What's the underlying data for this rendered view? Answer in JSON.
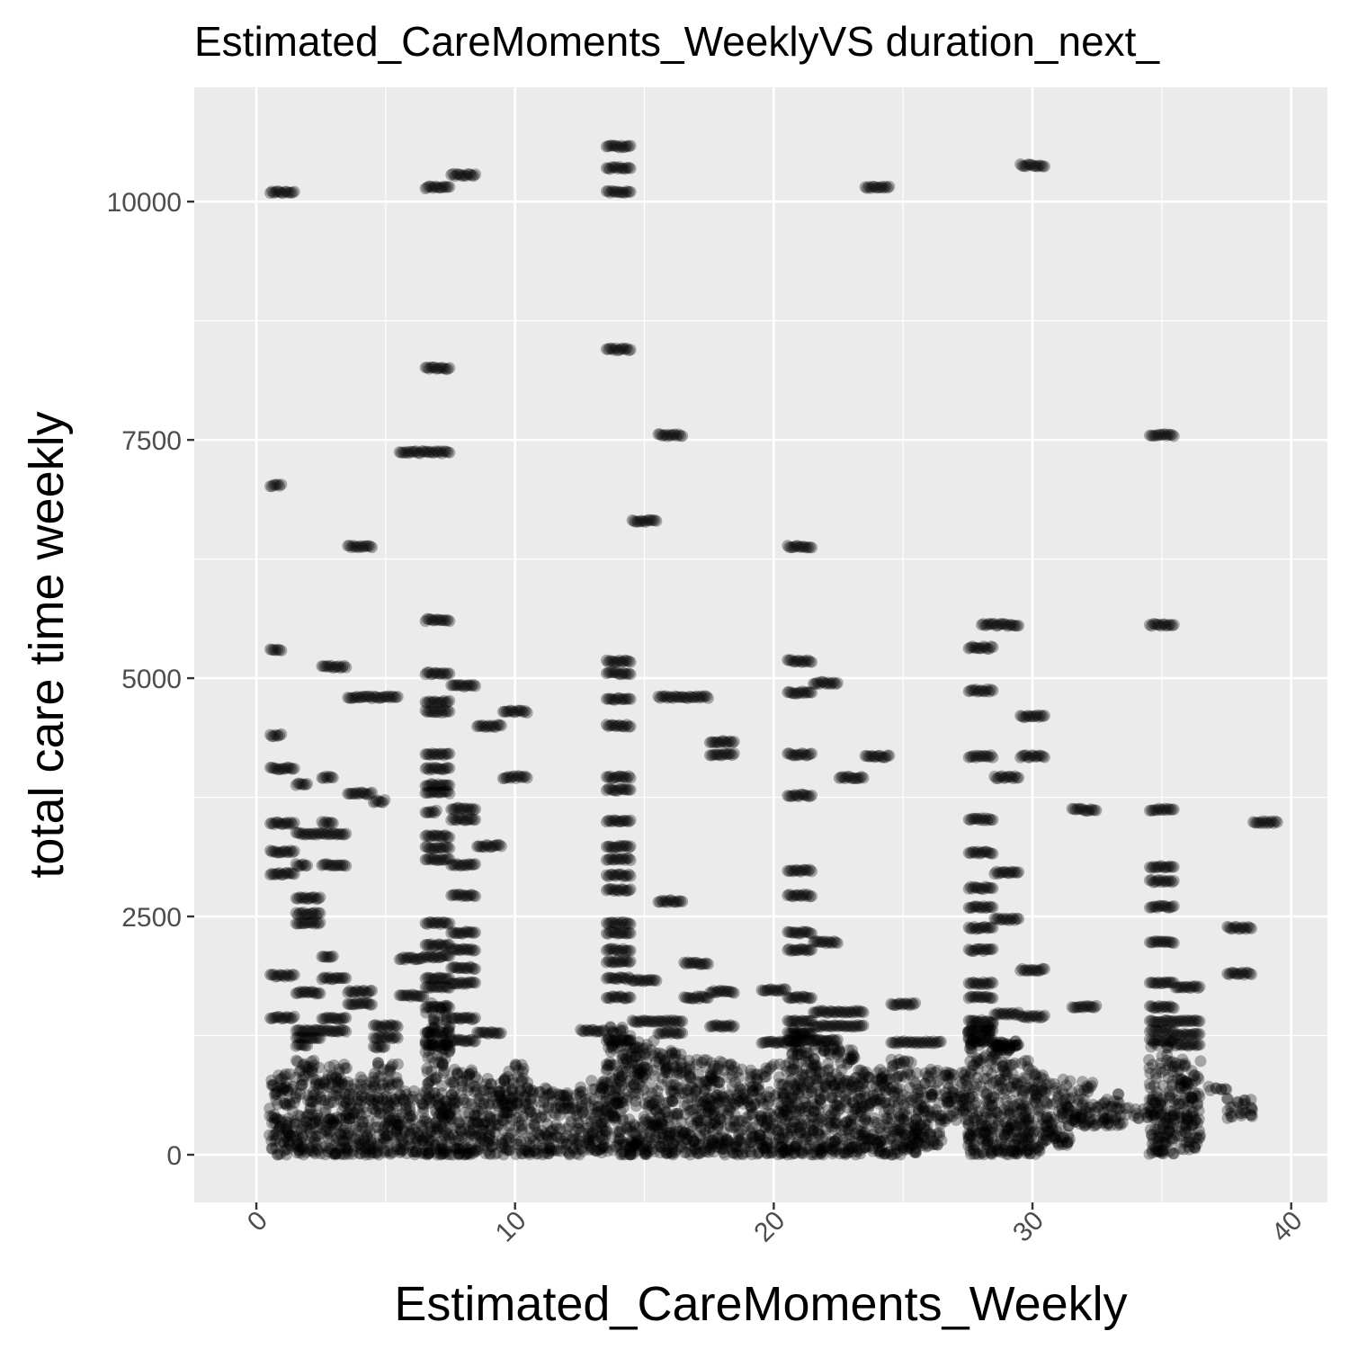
{
  "chart_data": {
    "type": "scatter",
    "title": "Estimated_CareMoments_WeeklyVS duration_next_",
    "xlabel": "Estimated_CareMoments_Weekly",
    "ylabel": "total care time weekly",
    "xlim": [
      -2.4,
      41.4
    ],
    "ylim": [
      -500,
      11200
    ],
    "x_ticks": [
      0,
      10,
      20,
      30,
      40
    ],
    "y_ticks": [
      0,
      2500,
      5000,
      7500,
      10000
    ],
    "grid": true,
    "legend": "none",
    "colors": {
      "panel": "#ebebeb",
      "grid": "#ffffff",
      "point": "#000000"
    },
    "point_alpha": 0.3,
    "bands": [
      [
        0.5,
        1.5,
        10100
      ],
      [
        6.5,
        7.5,
        10150
      ],
      [
        7.5,
        8.5,
        10280
      ],
      [
        13.5,
        14.5,
        10580
      ],
      [
        13.5,
        14.5,
        10350
      ],
      [
        13.5,
        14.5,
        10100
      ],
      [
        23.5,
        24.5,
        10150
      ],
      [
        29.5,
        30.5,
        10380
      ],
      [
        13.5,
        14.5,
        8450
      ],
      [
        6.5,
        7.5,
        8250
      ],
      [
        15.5,
        16.5,
        7550
      ],
      [
        34.5,
        35.5,
        7550
      ],
      [
        5.5,
        7.5,
        7370
      ],
      [
        0.5,
        1.0,
        7020
      ],
      [
        14.5,
        15.5,
        6650
      ],
      [
        3.5,
        4.5,
        6380
      ],
      [
        20.5,
        21.5,
        6380
      ],
      [
        6.5,
        7.5,
        5610
      ],
      [
        28.0,
        29.5,
        5560
      ],
      [
        34.5,
        35.5,
        5560
      ],
      [
        27.5,
        28.5,
        5320
      ],
      [
        0.5,
        1.0,
        5300
      ],
      [
        13.5,
        14.5,
        5180
      ],
      [
        20.5,
        21.5,
        5180
      ],
      [
        2.5,
        3.5,
        5120
      ],
      [
        6.5,
        7.5,
        5050
      ],
      [
        13.5,
        14.5,
        5050
      ],
      [
        21.5,
        22.5,
        4950
      ],
      [
        7.5,
        8.5,
        4920
      ],
      [
        27.5,
        28.5,
        4870
      ],
      [
        20.5,
        21.5,
        4850
      ],
      [
        3.5,
        5.5,
        4800
      ],
      [
        15.5,
        17.5,
        4800
      ],
      [
        6.5,
        7.5,
        4750
      ],
      [
        13.5,
        14.5,
        4780
      ],
      [
        6.5,
        7.5,
        4650
      ],
      [
        9.5,
        10.5,
        4650
      ],
      [
        29.5,
        30.5,
        4600
      ],
      [
        8.5,
        9.5,
        4500
      ],
      [
        13.5,
        14.5,
        4500
      ],
      [
        0.5,
        1.0,
        4400
      ],
      [
        17.5,
        18.5,
        4330
      ],
      [
        6.5,
        7.5,
        4200
      ],
      [
        17.5,
        18.5,
        4200
      ],
      [
        20.5,
        21.5,
        4200
      ],
      [
        23.5,
        24.5,
        4180
      ],
      [
        27.5,
        28.5,
        4180
      ],
      [
        29.5,
        30.5,
        4180
      ],
      [
        6.5,
        7.5,
        4050
      ],
      [
        0.5,
        1.5,
        4050
      ],
      [
        9.5,
        10.5,
        3960
      ],
      [
        13.5,
        14.5,
        3960
      ],
      [
        22.5,
        23.5,
        3960
      ],
      [
        28.5,
        29.5,
        3960
      ],
      [
        2.5,
        3.0,
        3960
      ],
      [
        1.5,
        2.0,
        3890
      ],
      [
        6.5,
        7.5,
        3880
      ],
      [
        3.5,
        4.5,
        3790
      ],
      [
        13.5,
        14.5,
        3830
      ],
      [
        6.5,
        7.5,
        3800
      ],
      [
        20.5,
        21.5,
        3770
      ],
      [
        4.5,
        5.0,
        3710
      ],
      [
        7.5,
        8.5,
        3630
      ],
      [
        31.5,
        32.5,
        3620
      ],
      [
        34.5,
        35.5,
        3620
      ],
      [
        6.5,
        7.0,
        3600
      ],
      [
        27.5,
        28.5,
        3520
      ],
      [
        7.5,
        8.5,
        3520
      ],
      [
        13.5,
        14.5,
        3500
      ],
      [
        38.5,
        39.5,
        3490
      ],
      [
        0.5,
        1.5,
        3480
      ],
      [
        2.5,
        3.0,
        3480
      ],
      [
        1.5,
        3.5,
        3370
      ],
      [
        6.5,
        7.5,
        3340
      ],
      [
        6.5,
        7.5,
        3220
      ],
      [
        8.5,
        9.5,
        3240
      ],
      [
        13.5,
        14.5,
        3230
      ],
      [
        0.5,
        1.5,
        3180
      ],
      [
        27.5,
        28.5,
        3170
      ],
      [
        6.5,
        7.5,
        3100
      ],
      [
        13.5,
        14.5,
        3100
      ],
      [
        7.5,
        8.5,
        3040
      ],
      [
        1.5,
        2.0,
        3040
      ],
      [
        2.5,
        3.5,
        3040
      ],
      [
        34.5,
        35.5,
        3020
      ],
      [
        20.5,
        21.5,
        2980
      ],
      [
        28.5,
        29.5,
        2960
      ],
      [
        0.5,
        1.5,
        2950
      ],
      [
        13.5,
        14.5,
        2930
      ],
      [
        34.5,
        35.5,
        2870
      ],
      [
        27.5,
        28.5,
        2800
      ],
      [
        13.5,
        14.5,
        2780
      ],
      [
        7.5,
        8.5,
        2720
      ],
      [
        20.5,
        21.5,
        2720
      ],
      [
        1.5,
        2.5,
        2690
      ],
      [
        15.5,
        16.5,
        2660
      ],
      [
        27.5,
        28.5,
        2600
      ],
      [
        34.5,
        35.5,
        2600
      ],
      [
        1.5,
        2.5,
        2530
      ],
      [
        28.5,
        29.5,
        2470
      ],
      [
        1.5,
        2.5,
        2430
      ],
      [
        6.5,
        7.5,
        2430
      ],
      [
        13.5,
        14.5,
        2430
      ],
      [
        27.5,
        28.5,
        2380
      ],
      [
        37.5,
        38.5,
        2380
      ],
      [
        7.5,
        8.5,
        2330
      ],
      [
        13.5,
        14.5,
        2330
      ],
      [
        20.5,
        21.5,
        2330
      ],
      [
        34.5,
        35.5,
        2230
      ],
      [
        21.5,
        22.5,
        2230
      ],
      [
        6.5,
        7.5,
        2200
      ],
      [
        7.5,
        8.5,
        2150
      ],
      [
        13.5,
        14.5,
        2150
      ],
      [
        20.5,
        21.5,
        2150
      ],
      [
        27.5,
        28.5,
        2150
      ],
      [
        2.5,
        3.0,
        2080
      ],
      [
        6.5,
        7.5,
        2080
      ],
      [
        5.5,
        6.5,
        2060
      ],
      [
        13.5,
        14.5,
        2030
      ],
      [
        16.5,
        17.5,
        2010
      ],
      [
        7.5,
        8.5,
        1960
      ],
      [
        29.5,
        30.5,
        1940
      ],
      [
        37.5,
        38.5,
        1900
      ],
      [
        0.5,
        1.5,
        1880
      ],
      [
        2.5,
        3.5,
        1850
      ],
      [
        6.5,
        7.5,
        1850
      ],
      [
        13.5,
        14.5,
        1850
      ],
      [
        14.5,
        15.5,
        1830
      ],
      [
        7.5,
        8.5,
        1800
      ],
      [
        27.5,
        28.5,
        1800
      ],
      [
        34.5,
        35.5,
        1800
      ],
      [
        6.5,
        7.5,
        1760
      ],
      [
        35.5,
        36.5,
        1760
      ],
      [
        1.5,
        2.5,
        1700
      ],
      [
        3.5,
        4.5,
        1710
      ],
      [
        17.5,
        18.5,
        1710
      ],
      [
        19.5,
        20.5,
        1730
      ],
      [
        5.5,
        6.5,
        1670
      ],
      [
        13.5,
        14.5,
        1650
      ],
      [
        16.5,
        17.5,
        1650
      ],
      [
        20.5,
        21.5,
        1650
      ],
      [
        27.5,
        28.5,
        1650
      ],
      [
        3.5,
        4.5,
        1580
      ],
      [
        24.5,
        25.5,
        1580
      ],
      [
        31.5,
        32.5,
        1550
      ],
      [
        34.5,
        35.5,
        1550
      ],
      [
        6.5,
        7.5,
        1550
      ],
      [
        21.5,
        23.5,
        1500
      ],
      [
        28.5,
        29.5,
        1480
      ],
      [
        29.5,
        30.5,
        1450
      ],
      [
        0.5,
        1.5,
        1440
      ],
      [
        2.5,
        3.5,
        1430
      ],
      [
        7.5,
        8.5,
        1430
      ],
      [
        14.5,
        16.5,
        1400
      ],
      [
        20.5,
        21.5,
        1400
      ],
      [
        27.5,
        28.5,
        1400
      ],
      [
        34.5,
        35.5,
        1400
      ],
      [
        35.5,
        36.5,
        1400
      ],
      [
        4.5,
        5.5,
        1350
      ],
      [
        17.5,
        18.5,
        1350
      ],
      [
        21.5,
        23.5,
        1350
      ],
      [
        1.5,
        3.5,
        1300
      ],
      [
        12.5,
        13.5,
        1300
      ],
      [
        6.5,
        7.5,
        1280
      ],
      [
        8.5,
        9.5,
        1280
      ],
      [
        15.5,
        16.5,
        1280
      ],
      [
        20.5,
        21.5,
        1280
      ],
      [
        27.5,
        28.5,
        1300
      ],
      [
        34.5,
        35.5,
        1300
      ],
      [
        35.5,
        36.5,
        1260
      ],
      [
        1.5,
        2.5,
        1230
      ],
      [
        4.5,
        5.5,
        1230
      ],
      [
        7.5,
        8.5,
        1200
      ],
      [
        13.5,
        14.5,
        1200
      ],
      [
        19.5,
        20.5,
        1180
      ],
      [
        20.5,
        22.5,
        1200
      ],
      [
        24.5,
        26.5,
        1180
      ],
      [
        27.5,
        28.5,
        1200
      ],
      [
        34.5,
        35.5,
        1200
      ],
      [
        1.5,
        2.0,
        1150
      ],
      [
        4.5,
        5.0,
        1130
      ],
      [
        6.5,
        7.5,
        1150
      ],
      [
        28.5,
        29.5,
        1150
      ],
      [
        35.5,
        36.5,
        1150
      ]
    ],
    "dense_region": [
      [
        0.5,
        1.5,
        0,
        850
      ],
      [
        1.5,
        2.5,
        0,
        1000
      ],
      [
        2.5,
        3.5,
        0,
        950
      ],
      [
        3.5,
        4.5,
        0,
        850
      ],
      [
        4.5,
        5.5,
        0,
        1000
      ],
      [
        5.5,
        6.5,
        0,
        700
      ],
      [
        6.5,
        7.5,
        0,
        1600
      ],
      [
        7.5,
        8.5,
        0,
        900
      ],
      [
        8.5,
        9.5,
        0,
        800
      ],
      [
        9.5,
        10.5,
        0,
        950
      ],
      [
        10.5,
        11.5,
        0,
        700
      ],
      [
        11.5,
        12.5,
        0,
        650
      ],
      [
        12.5,
        13.5,
        0,
        800
      ],
      [
        13.5,
        14.5,
        0,
        1350
      ],
      [
        14.5,
        15.5,
        0,
        1200
      ],
      [
        15.5,
        16.5,
        0,
        1100
      ],
      [
        16.5,
        17.5,
        0,
        1000
      ],
      [
        17.5,
        18.5,
        0,
        1000
      ],
      [
        18.5,
        19.5,
        0,
        900
      ],
      [
        19.5,
        20.5,
        0,
        950
      ],
      [
        20.5,
        21.5,
        0,
        1350
      ],
      [
        21.5,
        22.5,
        0,
        1200
      ],
      [
        22.5,
        23.5,
        0,
        1100
      ],
      [
        23.5,
        24.5,
        0,
        900
      ],
      [
        24.5,
        25.5,
        0,
        1000
      ],
      [
        25.5,
        26.5,
        80,
        900
      ],
      [
        26.5,
        27.5,
        350,
        880
      ],
      [
        27.5,
        28.5,
        0,
        1400
      ],
      [
        28.5,
        29.5,
        0,
        1200
      ],
      [
        29.5,
        30.5,
        0,
        1000
      ],
      [
        30.5,
        31.5,
        100,
        800
      ],
      [
        31.5,
        32.5,
        300,
        780
      ],
      [
        32.5,
        33.5,
        300,
        650
      ],
      [
        33.5,
        34.5,
        380,
        500
      ],
      [
        34.5,
        35.5,
        0,
        1200
      ],
      [
        35.5,
        36.5,
        50,
        1000
      ],
      [
        36.5,
        37.5,
        650,
        720
      ],
      [
        37.5,
        38.5,
        380,
        620
      ]
    ]
  }
}
